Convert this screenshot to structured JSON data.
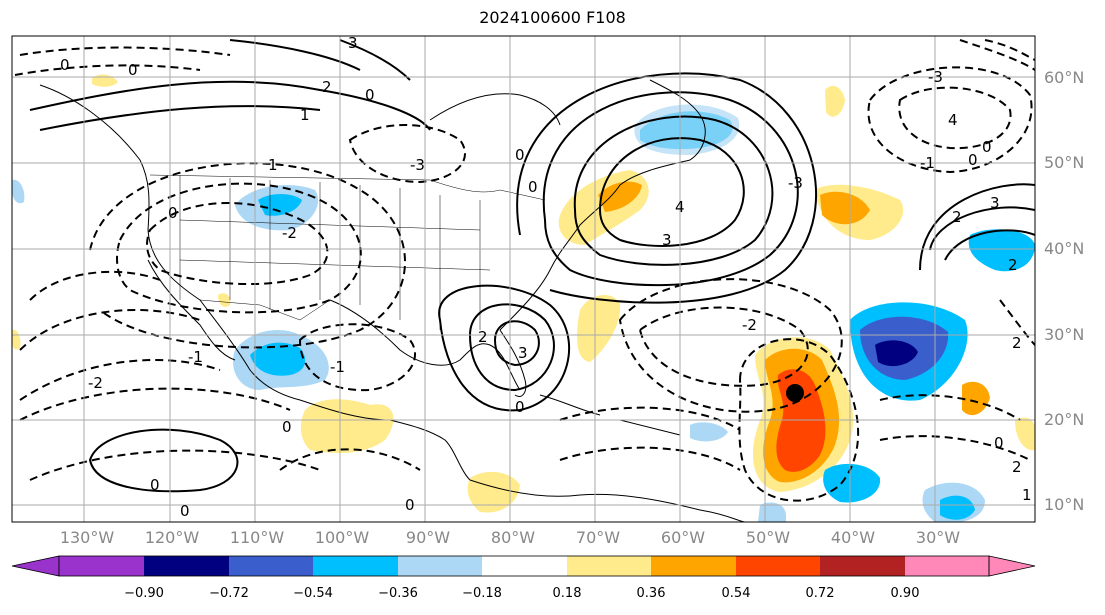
{
  "title": "2024100600 F108",
  "lat_labels": [
    "60°N",
    "50°N",
    "40°N",
    "30°N",
    "20°N",
    "10°N"
  ],
  "lon_labels": [
    "130°W",
    "120°W",
    "110°W",
    "100°W",
    "90°W",
    "80°W",
    "70°W",
    "60°W",
    "50°W",
    "40°W",
    "30°W"
  ],
  "colorbar": {
    "ticks": [
      "−0.90",
      "−0.72",
      "−0.54",
      "−0.36",
      "−0.18",
      "0.18",
      "0.36",
      "0.54",
      "0.72",
      "0.90"
    ],
    "colors": [
      "#9933cc",
      "#000080",
      "#3a5fcd",
      "#00bfff",
      "#add8f5",
      "#ffffff",
      "#ffeb8c",
      "#ffa500",
      "#ff4500",
      "#b22222",
      "#ff88b8"
    ]
  },
  "contour_labels": [
    "-3",
    "-2",
    "-1",
    "0",
    "1",
    "2",
    "3",
    "4"
  ],
  "marker": {
    "name": "storm-center",
    "color": "#000000"
  }
}
